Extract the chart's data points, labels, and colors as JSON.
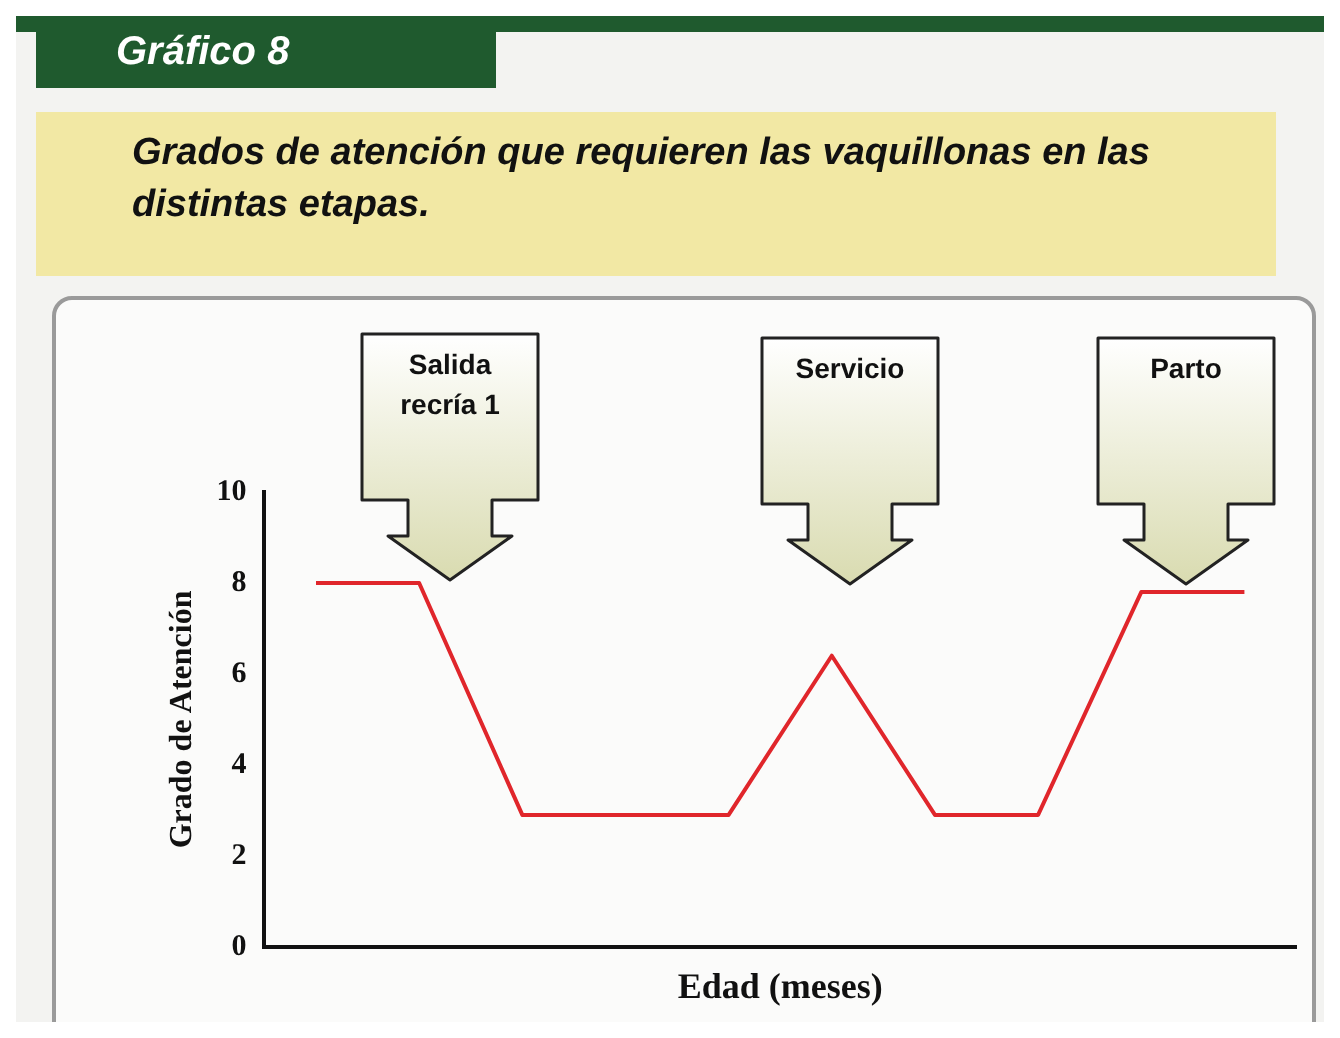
{
  "chart_data": {
    "type": "line",
    "title": "Gráfico 8",
    "subtitle": "Grados de atención que requieren las vaquillonas en las distintas etapas.",
    "xlabel": "Edad (meses)",
    "ylabel": "Grado de Atención",
    "categories": [
      null,
      null,
      null,
      null,
      null,
      null,
      null,
      null,
      null,
      null
    ],
    "series": [
      {
        "color": "#e0262b",
        "values": [
          8,
          8,
          2.9,
          2.9,
          2.9,
          6.4,
          2.9,
          2.9,
          7.8,
          7.8
        ]
      }
    ],
    "ylim": [
      0,
      10
    ],
    "yticks": [
      0,
      2,
      4,
      6,
      8,
      10
    ],
    "grid": false,
    "legend": false,
    "marker": "none",
    "line_style": "solid",
    "tick_labels": "y",
    "annotations": [
      "Salida recría 1",
      "Servicio",
      "Parto"
    ]
  }
}
